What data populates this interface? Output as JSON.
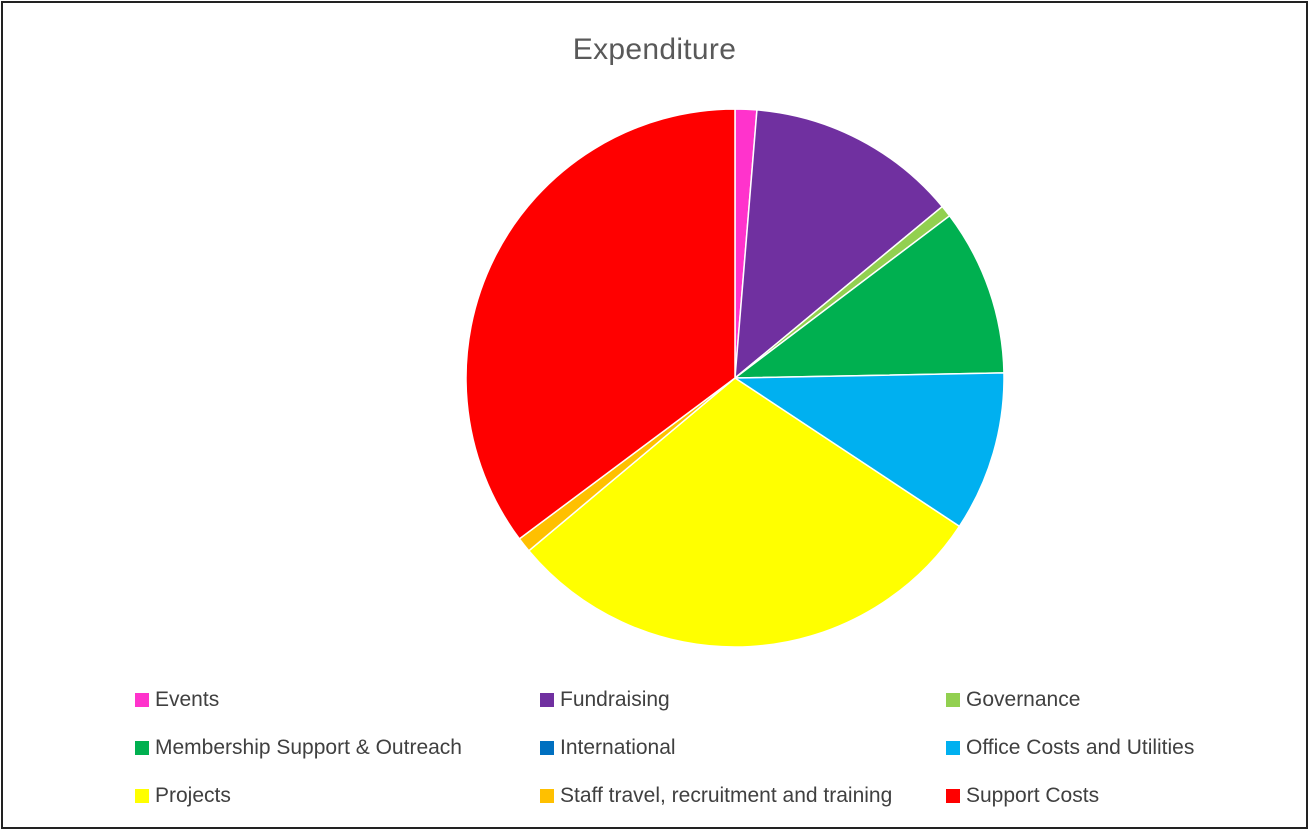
{
  "chart_data": {
    "type": "pie",
    "title": "Expenditure",
    "legend_position": "bottom",
    "categories": [
      "Events",
      "Fundraising",
      "Governance",
      "Membership Support & Outreach",
      "International",
      "Office Costs and Utilities",
      "Projects",
      "Staff travel, recruitment and training",
      "Support Costs"
    ],
    "values": [
      1.3,
      12.7,
      0.7,
      10.0,
      0.0,
      9.6,
      29.6,
      0.9,
      35.2
    ],
    "unit": "%",
    "colors": [
      "#FF33CC",
      "#7030A0",
      "#92D050",
      "#00B050",
      "#0070C0",
      "#00B0F0",
      "#FFFF00",
      "#FFC000",
      "#FF0000"
    ],
    "start_angle_deg": 0,
    "direction": "clockwise"
  }
}
